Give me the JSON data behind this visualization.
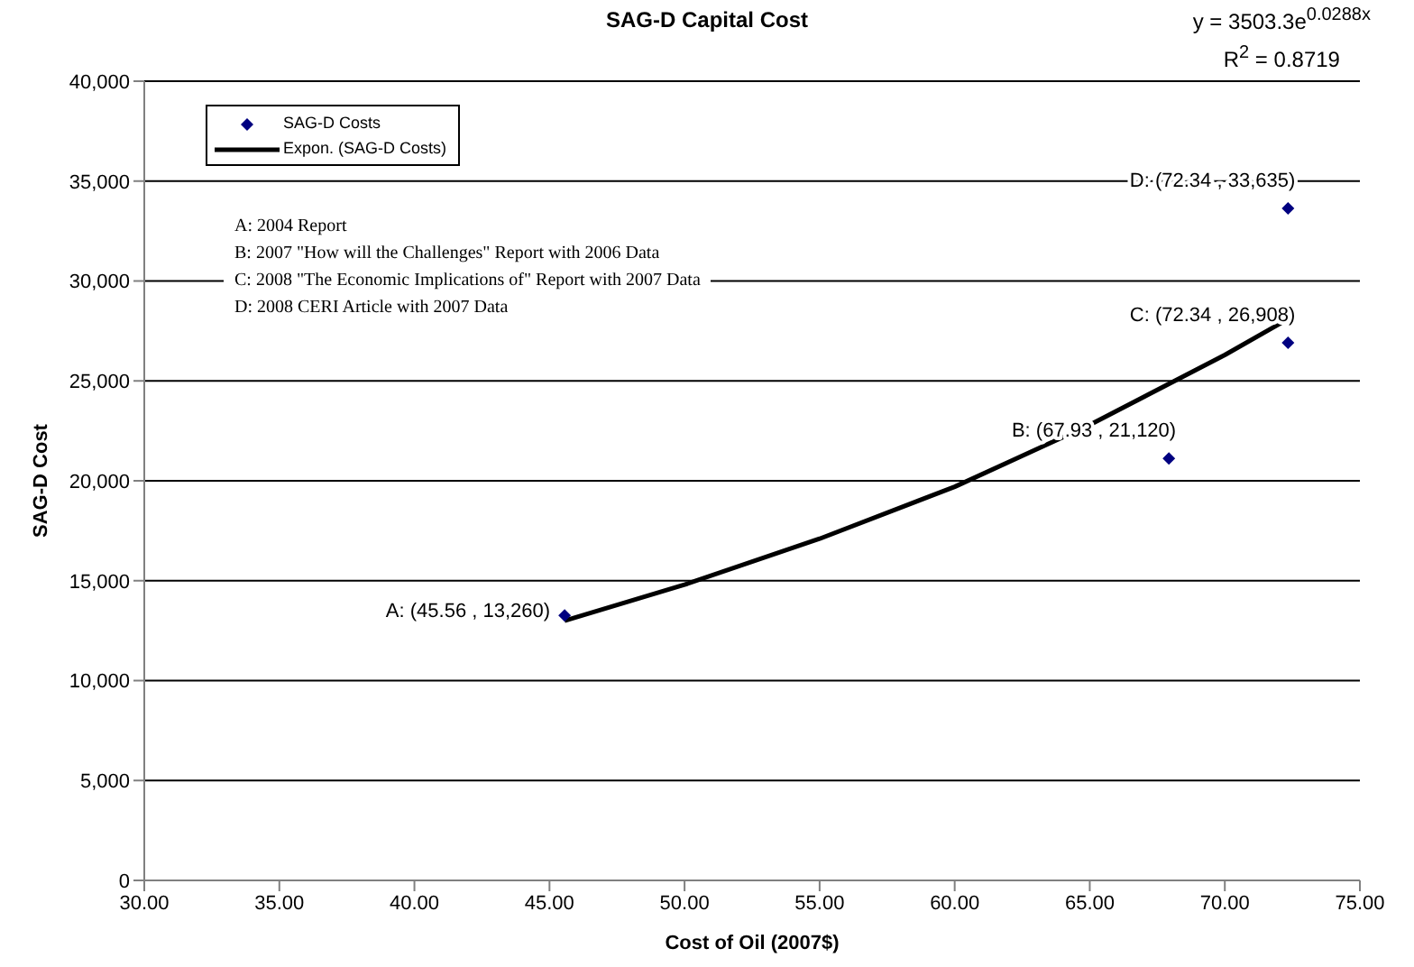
{
  "chart_data": {
    "type": "scatter",
    "title": "SAG-D Capital Cost",
    "xlabel": "Cost of Oil (2007$)",
    "ylabel": "SAG-D Cost",
    "series": [
      {
        "name": "SAG-D Costs",
        "color": "#000080",
        "marker": "diamond",
        "x": [
          45.56,
          67.93,
          72.34,
          72.34
        ],
        "values": [
          13260,
          21120,
          26908,
          33635
        ]
      },
      {
        "name": "Expon. (SAG-D Costs)",
        "type": "line",
        "marker": "none",
        "color": "#000000",
        "x": [
          45.56,
          50,
          55,
          60,
          65,
          70,
          72.34
        ],
        "values": [
          13000,
          14800,
          17100,
          19700,
          22800,
          26300,
          28100
        ]
      }
    ],
    "annotations": [
      {
        "text": "A:  (45.56 , 13,260)",
        "x": 45.56,
        "y": 13260
      },
      {
        "text": "B:  (67.93 , 21,120)",
        "x": 67.93,
        "y": 21120
      },
      {
        "text": "C:  (72.34 , 26,908)",
        "x": 72.34,
        "y": 26908
      },
      {
        "text": "D:  (72.34 , 33,635)",
        "x": 72.34,
        "y": 33635
      },
      "y = 3503.3e$^{0.0288x}$",
      "R$^{2}$ = 0.8719",
      "A:  2004 Report",
      "B:  2007 \"How will the Challenges\" Report with 2006 Data",
      "C:  2008 \"The Economic Implications of\"  Report with 2007 Data",
      "D:  2008 CERI Article with 2007 Data"
    ],
    "xlim": [
      30,
      75
    ],
    "xticks": [
      {
        "value": 30,
        "label": "30.00"
      },
      {
        "value": 35,
        "label": "35.00"
      },
      {
        "value": 40,
        "label": "40.00"
      },
      {
        "value": 45,
        "label": "45.00"
      },
      {
        "value": 50,
        "label": "50.00"
      },
      {
        "value": 55,
        "label": "55.00"
      },
      {
        "value": 60,
        "label": "60.00"
      },
      {
        "value": 65,
        "label": "65.00"
      },
      {
        "value": 70,
        "label": "70.00"
      },
      {
        "value": 75,
        "label": "75.00"
      }
    ],
    "ylim": [
      0,
      40000
    ],
    "yticks": [
      {
        "value": 0,
        "label": "0"
      },
      {
        "value": 5000,
        "label": "5,000"
      },
      {
        "value": 10000,
        "label": "10,000"
      },
      {
        "value": 15000,
        "label": "15,000"
      },
      {
        "value": 20000,
        "label": "20,000"
      },
      {
        "value": 25000,
        "label": "25,000"
      },
      {
        "value": 30000,
        "label": "30,000"
      },
      {
        "value": 35000,
        "label": "35,000"
      },
      {
        "value": 40000,
        "label": "40,000"
      }
    ],
    "grid": "y",
    "legend": "top left"
  }
}
